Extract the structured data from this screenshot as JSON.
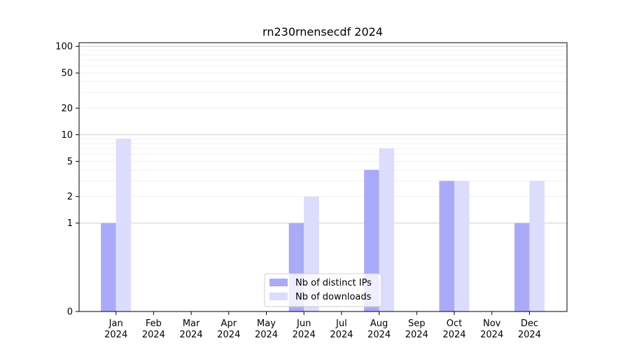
{
  "chart_data": {
    "type": "bar",
    "title": "rn230rnensecdf 2024",
    "xlabel": "",
    "ylabel": "",
    "yscale": "symlog",
    "ylim": [
      0,
      110
    ],
    "yticks": [
      0,
      1,
      2,
      5,
      10,
      20,
      50,
      100
    ],
    "ytick_labels": [
      "0",
      "1",
      "2",
      "5",
      "10",
      "20",
      "50",
      "100"
    ],
    "grid": "horizontal",
    "legend_position": "bottom-center",
    "categories": [
      "Jan 2024",
      "Feb 2024",
      "Mar 2024",
      "Apr 2024",
      "May 2024",
      "Jun 2024",
      "Jul 2024",
      "Aug 2024",
      "Sep 2024",
      "Oct 2024",
      "Nov 2024",
      "Dec 2024"
    ],
    "category_month_labels": [
      "Jan",
      "Feb",
      "Mar",
      "Apr",
      "May",
      "Jun",
      "Jul",
      "Aug",
      "Sep",
      "Oct",
      "Nov",
      "Dec"
    ],
    "category_year_labels": [
      "2024",
      "2024",
      "2024",
      "2024",
      "2024",
      "2024",
      "2024",
      "2024",
      "2024",
      "2024",
      "2024",
      "2024"
    ],
    "series": [
      {
        "name": "Nb of distinct IPs",
        "color": "#aaaaf8",
        "values": [
          1,
          0,
          0,
          0,
          0,
          1,
          0,
          4,
          0,
          3,
          0,
          1
        ]
      },
      {
        "name": "Nb of downloads",
        "color": "#dcdcfc",
        "values": [
          9,
          0,
          0,
          0,
          0,
          2,
          0,
          7,
          0,
          3,
          0,
          3
        ]
      }
    ]
  }
}
